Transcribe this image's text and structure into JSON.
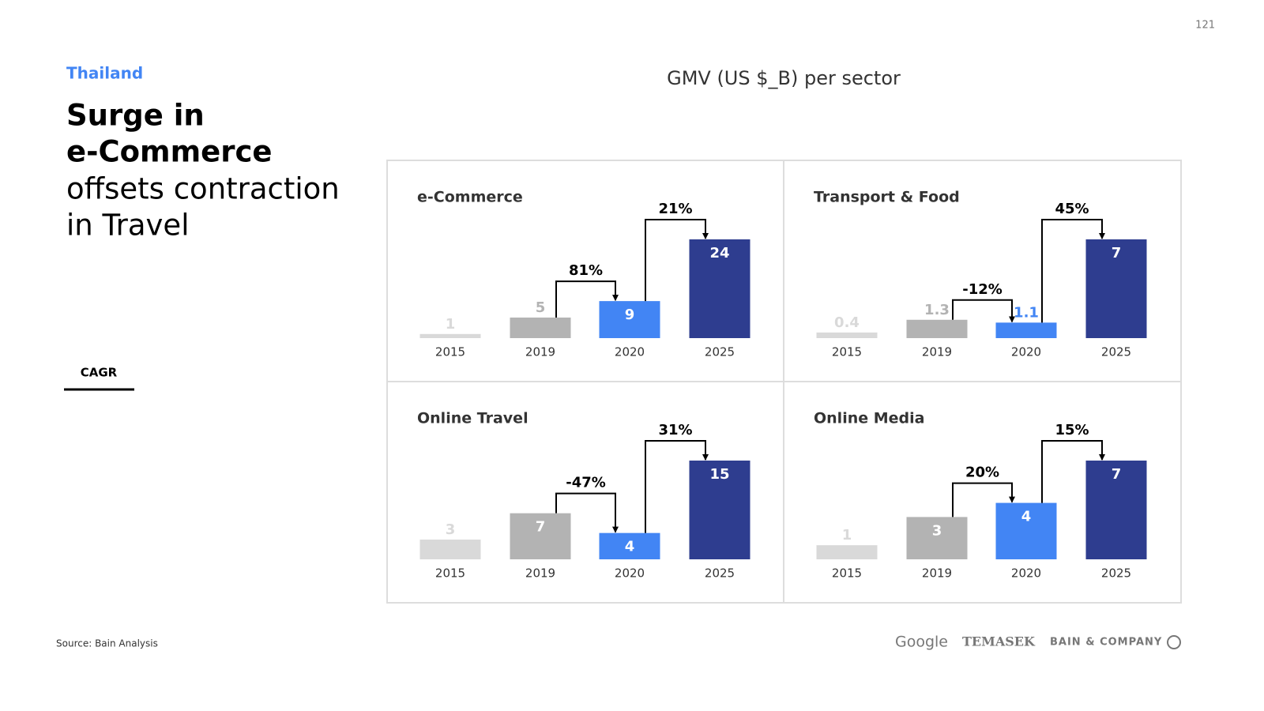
{
  "page": {
    "number": "121",
    "country": "Thailand",
    "title": [
      "Surge in",
      "e-Commerce",
      "offsets contraction",
      "in Travel"
    ],
    "legend_label": "CAGR",
    "chart_heading": "GMV (US $_B) per sector",
    "source": "Source: Bain Analysis",
    "logos": [
      "Google",
      "TEMASEK",
      "BAIN & COMPANY"
    ]
  },
  "chart_data": [
    {
      "type": "bar",
      "title": "e-Commerce",
      "categories": [
        "2015",
        "2019",
        "2020",
        "2025"
      ],
      "values": [
        1,
        5,
        9,
        24
      ],
      "colors": [
        "#d9d9d9",
        "#b3b3b3",
        "#4285f4",
        "#2e3d8f"
      ],
      "annotations": [
        "81%",
        "21%"
      ]
    },
    {
      "type": "bar",
      "title": "Transport & Food",
      "categories": [
        "2015",
        "2019",
        "2020",
        "2025"
      ],
      "values": [
        0.4,
        1.3,
        1.1,
        7
      ],
      "colors": [
        "#d9d9d9",
        "#b3b3b3",
        "#4285f4",
        "#2e3d8f"
      ],
      "annotations": [
        "-12%",
        "45%"
      ]
    },
    {
      "type": "bar",
      "title": "Online Travel",
      "categories": [
        "2015",
        "2019",
        "2020",
        "2025"
      ],
      "values": [
        3,
        7,
        4,
        15
      ],
      "colors": [
        "#d9d9d9",
        "#b3b3b3",
        "#4285f4",
        "#2e3d8f"
      ],
      "annotations": [
        "-47%",
        "31%"
      ]
    },
    {
      "type": "bar",
      "title": "Online Media",
      "categories": [
        "2015",
        "2019",
        "2020",
        "2025"
      ],
      "values": [
        1,
        3,
        4,
        7
      ],
      "colors": [
        "#d9d9d9",
        "#b3b3b3",
        "#4285f4",
        "#2e3d8f"
      ],
      "annotations": [
        "20%",
        "15%"
      ]
    }
  ]
}
